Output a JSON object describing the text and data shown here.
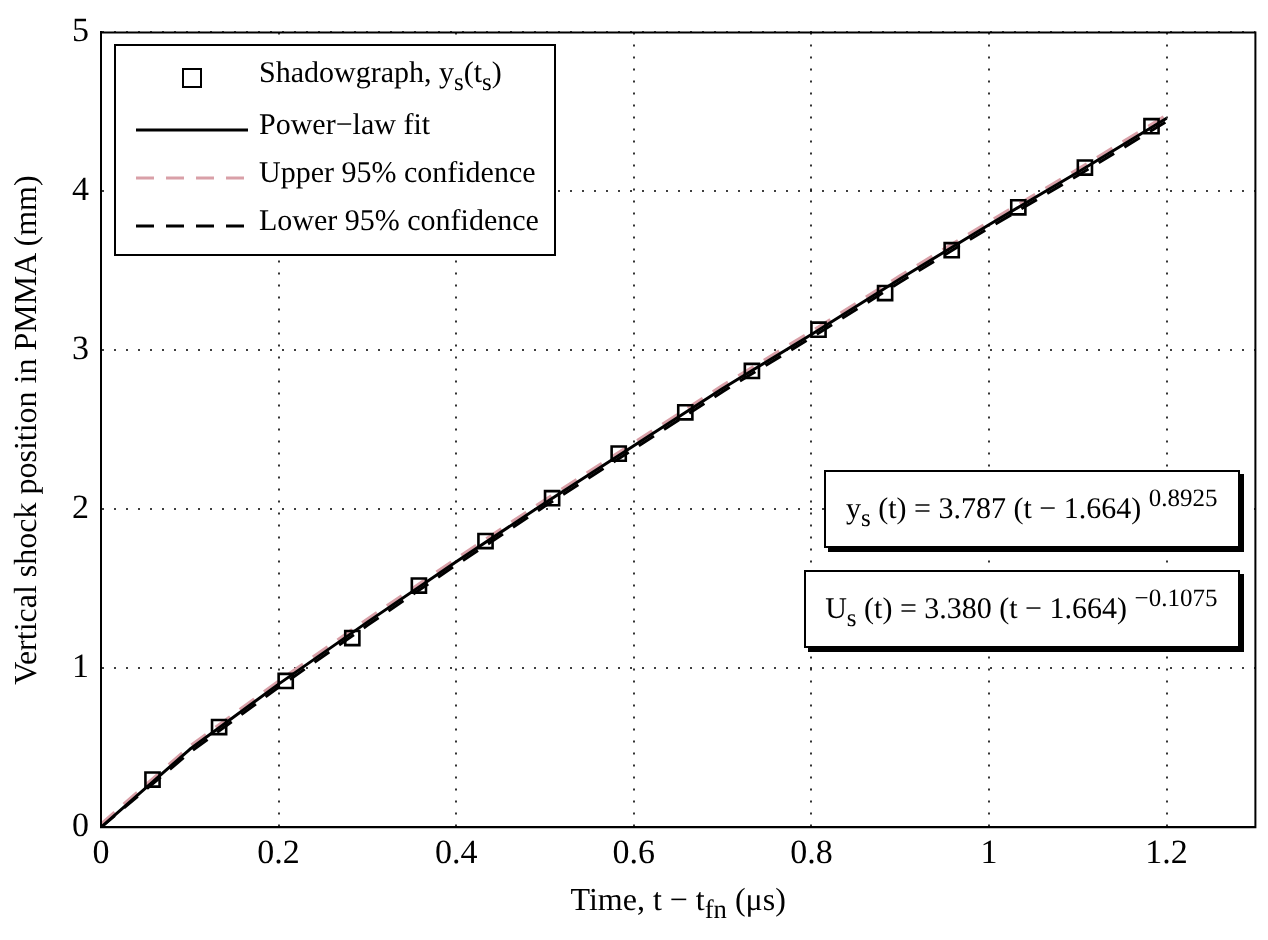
{
  "chart_data": {
    "type": "line",
    "xlabel": "Time, t − t$_{fn}$ (μs)",
    "ylabel": "Vertical shock position in PMMA (mm)",
    "xlim": [
      0,
      1.3
    ],
    "xticks": [
      0,
      0.2,
      0.4,
      0.6,
      0.8,
      1,
      1.2
    ],
    "ylim": [
      0,
      5
    ],
    "yticks": [
      0,
      1,
      2,
      3,
      4,
      5
    ],
    "grid": true,
    "legend": "top left",
    "annotations": [
      "y$_{s}$ (t) = 3.787 (t − 1.664) $^{0.8925}$",
      "U$_{s}$ (t) = 3.380 (t − 1.664) $^{−0.1075}$"
    ],
    "series": [
      {
        "name": "Shadowgraph, y$_{s}$(t$_{s}$)",
        "type": "scatter",
        "marker": "square",
        "color": "#000000",
        "x": [
          0.058,
          0.133,
          0.208,
          0.283,
          0.358,
          0.433,
          0.508,
          0.583,
          0.658,
          0.733,
          0.808,
          0.883,
          0.958,
          1.033,
          1.108,
          1.183
        ],
        "values": [
          0.3,
          0.63,
          0.92,
          1.19,
          1.52,
          1.8,
          2.07,
          2.35,
          2.61,
          2.87,
          3.13,
          3.36,
          3.63,
          3.9,
          4.15,
          4.41
        ]
      },
      {
        "name": "Power−law fit",
        "type": "line",
        "line_style": "solid",
        "color": "#000000",
        "x": [
          0,
          0.1,
          0.2,
          0.3,
          0.4,
          0.5,
          0.6,
          0.7,
          0.8,
          0.9,
          1.0,
          1.1,
          1.2
        ],
        "values": [
          0,
          0.49,
          0.9,
          1.29,
          1.67,
          2.04,
          2.4,
          2.76,
          3.1,
          3.45,
          3.79,
          4.12,
          4.46
        ]
      },
      {
        "name": "Upper 95% confidence",
        "type": "line",
        "line_style": "dashed",
        "color": "#d9a0a8",
        "x": [
          0,
          0.1,
          0.2,
          0.3,
          0.4,
          0.5,
          0.6,
          0.7,
          0.8,
          0.9,
          1.0,
          1.1,
          1.2
        ],
        "values": [
          0.02,
          0.51,
          0.92,
          1.31,
          1.69,
          2.06,
          2.42,
          2.78,
          3.12,
          3.47,
          3.81,
          4.14,
          4.48
        ]
      },
      {
        "name": "Lower 95% confidence",
        "type": "line",
        "line_style": "dashed",
        "color": "#000000",
        "x": [
          0,
          0.1,
          0.2,
          0.3,
          0.4,
          0.5,
          0.6,
          0.7,
          0.8,
          0.9,
          1.0,
          1.1,
          1.2
        ],
        "values": [
          0,
          0.47,
          0.88,
          1.27,
          1.65,
          2.02,
          2.38,
          2.74,
          3.08,
          3.43,
          3.77,
          4.1,
          4.44
        ]
      }
    ]
  }
}
